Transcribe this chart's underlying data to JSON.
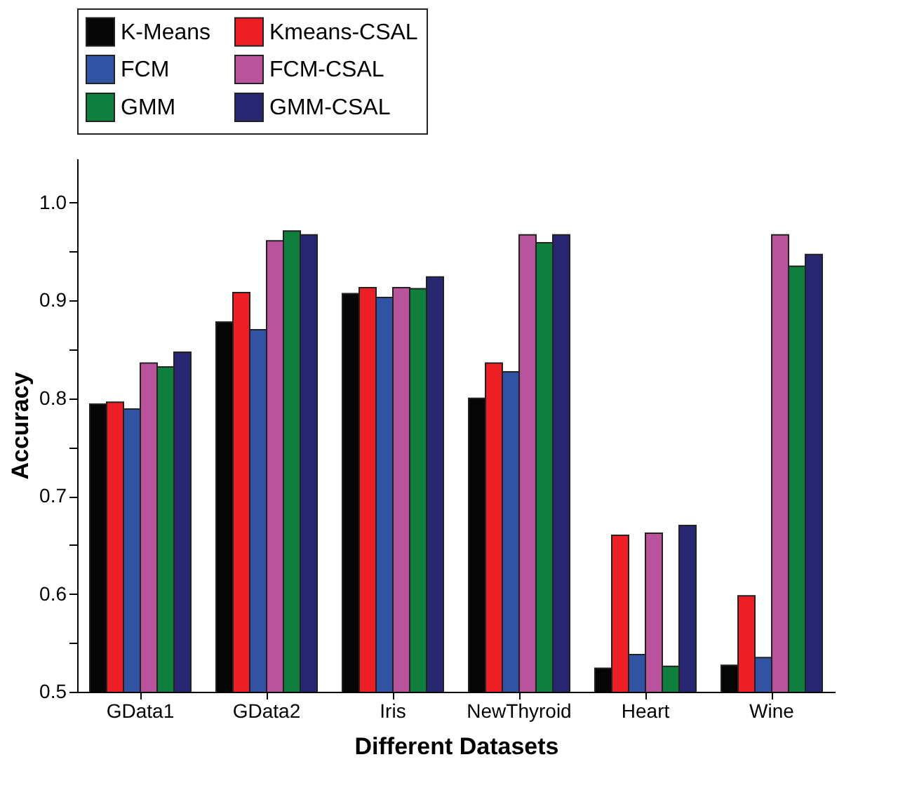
{
  "chart_data": {
    "type": "bar",
    "xlabel": "Different Datasets",
    "ylabel": "Accuracy",
    "categories": [
      "GData1",
      "GData2",
      "Iris",
      "NewThyroid",
      "Heart",
      "Wine"
    ],
    "series": [
      {
        "name": "K-Means",
        "color": "#050505",
        "values": [
          0.794,
          0.878,
          0.907,
          0.8,
          0.524,
          0.527
        ]
      },
      {
        "name": "Kmeans-CSAL",
        "color": "#ed1f24",
        "values": [
          0.796,
          0.908,
          0.913,
          0.836,
          0.66,
          0.598
        ]
      },
      {
        "name": "FCM",
        "color": "#3053a4",
        "values": [
          0.789,
          0.87,
          0.903,
          0.827,
          0.538,
          0.535
        ]
      },
      {
        "name": "FCM-CSAL",
        "color": "#b9549c",
        "values": [
          0.836,
          0.961,
          0.913,
          0.967,
          0.662,
          0.967
        ]
      },
      {
        "name": "GMM",
        "color": "#0f7f3d",
        "values": [
          0.832,
          0.971,
          0.912,
          0.959,
          0.526,
          0.935
        ]
      },
      {
        "name": "GMM-CSAL",
        "color": "#262671",
        "values": [
          0.847,
          0.967,
          0.924,
          0.967,
          0.67,
          0.947
        ]
      }
    ],
    "ylim": [
      0.5,
      1.045
    ],
    "yticks": [
      {
        "value": 0.5,
        "label": "0.5"
      },
      {
        "value": 0.55,
        "label": null
      },
      {
        "value": 0.6,
        "label": "0.6"
      },
      {
        "value": 0.65,
        "label": null
      },
      {
        "value": 0.7,
        "label": "0.7"
      },
      {
        "value": 0.75,
        "label": null
      },
      {
        "value": 0.8,
        "label": "0.8"
      },
      {
        "value": 0.85,
        "label": null
      },
      {
        "value": 0.9,
        "label": "0.9"
      },
      {
        "value": 0.95,
        "label": null
      },
      {
        "value": 1.0,
        "label": "1.0"
      }
    ],
    "grid": false,
    "legend": "top"
  }
}
